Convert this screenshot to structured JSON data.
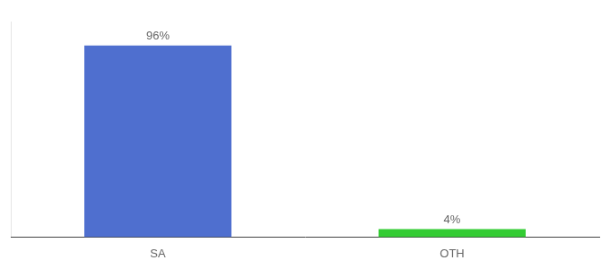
{
  "chart_data": {
    "type": "bar",
    "categories": [
      "SA",
      "OTH"
    ],
    "values": [
      96,
      4
    ],
    "value_labels": [
      "96%",
      "4%"
    ],
    "data_labels": true,
    "colors": [
      "#4f6fcf",
      "#33cc33"
    ],
    "ylim": [
      0,
      108
    ],
    "grid": false,
    "tick_labels": "x"
  }
}
